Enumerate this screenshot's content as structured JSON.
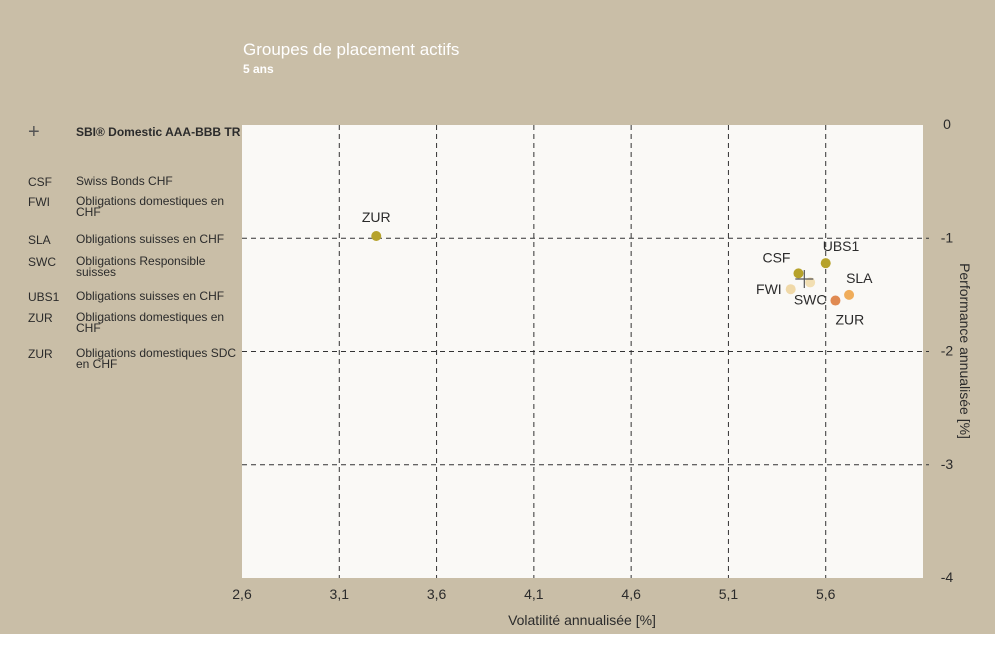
{
  "chart_data": {
    "type": "scatter",
    "title": "Groupes de placement actifs",
    "subtitle": "5 ans",
    "xlabel": "Volatilité annualisée [%]",
    "ylabel": "Performance annualisée [%]",
    "xlim": [
      2.6,
      6.1
    ],
    "ylim": [
      -4,
      0
    ],
    "xticks": [
      2.6,
      3.1,
      3.6,
      4.1,
      4.6,
      5.1,
      5.6
    ],
    "xtick_labels": [
      "2,6",
      "3,1",
      "3,6",
      "4,1",
      "4,6",
      "5,1",
      "5,6"
    ],
    "yticks": [
      0,
      -1,
      -2,
      -3,
      -4
    ],
    "ytick_labels": [
      "0",
      "-1",
      "-2",
      "-3",
      "-4"
    ],
    "y_axis_side": "right",
    "grid": true,
    "points": [
      {
        "label": "ZUR",
        "x": 3.29,
        "y": -0.98,
        "color": "#b6a22b",
        "label_pos": "above"
      },
      {
        "label": "CSF",
        "x": 5.46,
        "y": -1.31,
        "color": "#b6a22b",
        "label_pos": "left-above"
      },
      {
        "label": "UBS1",
        "x": 5.6,
        "y": -1.22,
        "color": "#b6a22b",
        "label_pos": "above-right"
      },
      {
        "label": "FWI",
        "x": 5.42,
        "y": -1.45,
        "color": "#f0d9a8",
        "label_pos": "left"
      },
      {
        "label": "SWC",
        "x": 5.52,
        "y": -1.39,
        "color": "#f2dfb2",
        "label_pos": "below"
      },
      {
        "label": "ZUR",
        "x": 5.65,
        "y": -1.55,
        "color": "#e08a52",
        "label_pos": "below-right"
      },
      {
        "label": "SLA",
        "x": 5.72,
        "y": -1.5,
        "color": "#f0ad5a",
        "label_pos": "above-right"
      }
    ],
    "benchmark": {
      "label": "SBI® Domestic AAA-BBB TR",
      "x": 5.49,
      "y": -1.36,
      "marker": "+"
    },
    "legend": [
      {
        "code": "CSF",
        "name": "Swiss Bonds CHF"
      },
      {
        "code": "FWI",
        "name": "Obligations domestiques en CHF"
      },
      {
        "code": "SLA",
        "name": "Obligations suisses en CHF"
      },
      {
        "code": "SWC",
        "name": "Obligations Responsible suisses"
      },
      {
        "code": "UBS1",
        "name": "Obligations suisses en CHF"
      },
      {
        "code": "ZUR",
        "name": "Obligations domestiques en CHF"
      },
      {
        "code": "ZUR",
        "name": "Obligations domestiques SDC en CHF"
      }
    ],
    "legend_benchmark": {
      "icon": "+",
      "name": "SBI® Domestic AAA-BBB TR"
    }
  }
}
